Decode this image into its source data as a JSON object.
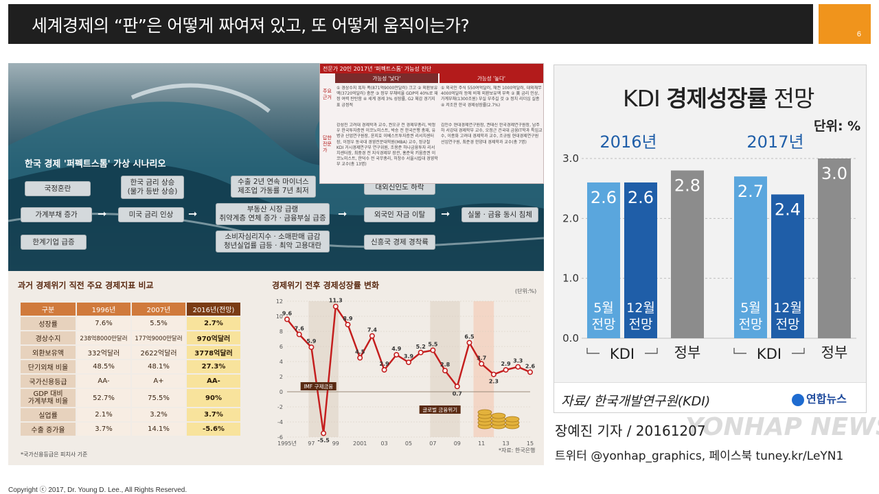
{
  "header": {
    "title": "세계경제의 “판”은 어떻게 짜여져 있고, 또 어떻게 움직이는가?",
    "page_number": "6"
  },
  "infographic": {
    "scenario_title": "한국 경제 '퍼펙트스톰' 가상 시나리오",
    "scenario_nodes": [
      "국정혼란",
      "가계부채 증가",
      "한계기업 급증",
      "한국 금리 상승\n(물가 등반 상승)",
      "미국 금리 인상",
      "수출 2년 연속 마이너스\n제조업 가동률 7년 최저",
      "부동산 시장 급랭\n취약계층 연체 증가 · 금융부실 급증",
      "소비자심리지수 · 소매판매 급감\n청년실업률 급등 · 최악 고용대란",
      "대외신인도 하락",
      "외국인 자금 이탈",
      "신흥국 경제 경착륙",
      "실물 · 금융 동시 침체"
    ],
    "verdict": {
      "title": "전문가 20인 2017년 '퍼펙트스톰' 가능성 진단",
      "col_low": "가능성 '낮다'",
      "col_high": "가능성 '높다'",
      "row_reason": "주요 근거",
      "row_experts": "답한 전문가",
      "low_reasons": "① 경상수지 흑자 폭(871억9000만달러) 크고 ② 외환보유액(3720억달러) 충분 ③ 정부 부채비율 GDP의 40%로 재정 여력 탄탄함 ④ 세계 경제 3% 성장률, G2 체감 경기지표 긍정적",
      "high_reasons": "① 외국인 주식 550여억달러, 채권 1000억달러, 대외채무 4000억달러 등에 비해 외환보유액 부족 ② 美 금리 인상, 가계부채(1300조원) 부실 부추길 것 ③ 정치 리더십 실종 ④ 저조한 한국 경제성장률(2.7%)",
      "low_experts": "강성진 고려대 경제학과 교수, 권오규 전 경제부총리, 박정우 한국투자증권 이코노미스트, 박승 전 한국은행 총재, 유병규 산업연구원장, 윤지호 이베스트투자증권 리서치센터장, 이정우 동국대 경영전문대학원(MBA) 교수, 정규철 KDI 거시경제연구부 연구위원, 조용준 하나금융투자 리서치센터장, 최중경 전 지식경제부 장관, 홍준욱 키움증권 이코노미스트, 한덕수 전 국무총리, 허창수 서울시립대 경영학부 교수(총 13명)",
      "high_experts": "김인수 현대경제연구원장, 권태신 한국경제연구원장, 남주하 서강대 경제학부 교수, 오정근 건국대 금융IT학과 특임교수, 이종화 고려대 경제학과 교수, 조규림 현대경제연구원 선임연구원, 최준경 한양대 경제학과 교수(총 7명)"
    },
    "indicators": {
      "title": "과거 경제위기 직전 주요 경제지표 비교",
      "headers": [
        "구분",
        "1996년",
        "2007년",
        "2016년(전망)"
      ],
      "rows": [
        [
          "성장률",
          "7.6%",
          "5.5%",
          "2.7%"
        ],
        [
          "경상수지",
          "238억8000만달러",
          "177억9000만달러",
          "970억달러"
        ],
        [
          "외환보유액",
          "332억달러",
          "2622억달러",
          "3778억달러"
        ],
        [
          "단기외채 비율",
          "48.5%",
          "48.1%",
          "27.3%"
        ],
        [
          "국가신용등급",
          "AA-",
          "A+",
          "AA-"
        ],
        [
          "GDP 대비\n가계부채 비율",
          "52.7%",
          "75.5%",
          "90%"
        ],
        [
          "실업률",
          "2.1%",
          "3.2%",
          "3.7%"
        ],
        [
          "수출 증가율",
          "3.7%",
          "14.1%",
          "-5.6%"
        ]
      ],
      "footnote": "*국가신용등급은 피치사 기준"
    },
    "growth": {
      "title": "경제위기 전후 경제성장률 변화",
      "unit": "(단위:%)",
      "source": "*자료: 한국은행",
      "ann_imf": "IMF 구제금융",
      "ann_gfc": "글로벌 금융위기"
    }
  },
  "chart_data": [
    {
      "type": "line",
      "title": "경제위기 전후 경제성장률 변화",
      "ylabel": "(단위:%)",
      "x": [
        "1995",
        "96",
        "97",
        "98",
        "99",
        "2000",
        "2001",
        "02",
        "03",
        "04",
        "05",
        "06",
        "07",
        "08",
        "09",
        "10",
        "11",
        "12",
        "13",
        "14",
        "15"
      ],
      "x_tick_labels": [
        "1995년",
        "97",
        "99",
        "2001",
        "03",
        "05",
        "07",
        "09",
        "11",
        "13",
        "15"
      ],
      "y_ticks": [
        -6,
        -4,
        -2,
        0,
        2,
        4,
        6,
        8,
        10,
        12
      ],
      "ylim": [
        -6,
        12
      ],
      "series": [
        {
          "values": [
            9.6,
            7.6,
            5.9,
            -5.5,
            11.3,
            8.9,
            4.5,
            7.4,
            2.9,
            4.9,
            3.9,
            5.2,
            5.5,
            2.8,
            0.7,
            6.5,
            3.7,
            2.3,
            2.9,
            3.3,
            2.6
          ],
          "color": "#c41e1e"
        }
      ]
    },
    {
      "type": "bar",
      "title": "KDI 경제성장률 전망",
      "unit_label": "단위: %",
      "ylim": [
        0,
        3.0
      ],
      "y_ticks": [
        "0.0",
        "1.0",
        "2.0",
        "3.0"
      ],
      "groups": [
        {
          "year": "2016년",
          "bars": [
            {
              "label": "5월 전망",
              "value": 2.6,
              "color": "#5aa6dd"
            },
            {
              "label": "12월 전망",
              "value": 2.6,
              "color": "#1f5ea8"
            },
            {
              "label": "정부",
              "value": 2.8,
              "color": "#8c8c8c"
            }
          ],
          "kdi_label": "KDI"
        },
        {
          "year": "2017년",
          "bars": [
            {
              "label": "5월 전망",
              "value": 2.7,
              "color": "#5aa6dd"
            },
            {
              "label": "12월 전망",
              "value": 2.4,
              "color": "#1f5ea8"
            },
            {
              "label": "정부",
              "value": 3.0,
              "color": "#8c8c8c"
            }
          ],
          "kdi_label": "KDI"
        }
      ],
      "source": "자료/ 한국개발연구원(KDI)"
    }
  ],
  "kdi": {
    "title_light": "KDI ",
    "title_bold": "경제성장률",
    "title_tail": " 전망",
    "unit": "단위: %",
    "source": "자료/ 한국개발연구원(KDI)",
    "logo": "연합뉴스"
  },
  "credits": {
    "reporter": "장예진 기자 / 20161207",
    "twitter": "트위터 @yonhap_graphics, 페이스북 tuney.kr/LeYN1",
    "watermark": "YONHAP NEWS"
  },
  "footer": {
    "copyright": "Copyright ⓒ 2017, Dr. Young D. Lee., All Rights Reserved."
  }
}
